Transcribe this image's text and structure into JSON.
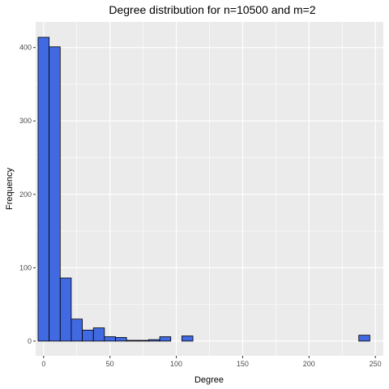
{
  "chart_data": {
    "type": "bar",
    "title": "Degree distribution for n=10500 and m=2",
    "xlabel": "Degree",
    "ylabel": "Frequency",
    "xlim": [
      -6,
      256
    ],
    "ylim": [
      -20,
      435
    ],
    "x_ticks": [
      0,
      50,
      100,
      150,
      200,
      250
    ],
    "y_ticks": [
      0,
      100,
      200,
      300,
      400
    ],
    "bin_width": 8.33,
    "bins": [
      {
        "start": -4.17,
        "end": 4.17,
        "value": 414
      },
      {
        "start": 4.17,
        "end": 12.5,
        "value": 401
      },
      {
        "start": 12.5,
        "end": 20.83,
        "value": 86
      },
      {
        "start": 20.83,
        "end": 29.17,
        "value": 30
      },
      {
        "start": 29.17,
        "end": 37.5,
        "value": 15
      },
      {
        "start": 37.5,
        "end": 45.83,
        "value": 18
      },
      {
        "start": 45.83,
        "end": 54.17,
        "value": 6
      },
      {
        "start": 54.17,
        "end": 62.5,
        "value": 5
      },
      {
        "start": 62.5,
        "end": 70.83,
        "value": 1
      },
      {
        "start": 70.83,
        "end": 79.17,
        "value": 1
      },
      {
        "start": 79.17,
        "end": 87.5,
        "value": 2
      },
      {
        "start": 87.5,
        "end": 95.83,
        "value": 6
      },
      {
        "start": 95.83,
        "end": 104.17,
        "value": 0
      },
      {
        "start": 104.17,
        "end": 112.5,
        "value": 7
      },
      {
        "start": 112.5,
        "end": 120.83,
        "value": 0
      },
      {
        "start": 120.83,
        "end": 129.17,
        "value": 0
      },
      {
        "start": 129.17,
        "end": 137.5,
        "value": 0
      },
      {
        "start": 137.5,
        "end": 145.83,
        "value": 0
      },
      {
        "start": 145.83,
        "end": 154.17,
        "value": 0
      },
      {
        "start": 154.17,
        "end": 162.5,
        "value": 0
      },
      {
        "start": 162.5,
        "end": 170.83,
        "value": 0
      },
      {
        "start": 170.83,
        "end": 179.17,
        "value": 0
      },
      {
        "start": 179.17,
        "end": 187.5,
        "value": 0
      },
      {
        "start": 187.5,
        "end": 195.83,
        "value": 0
      },
      {
        "start": 195.83,
        "end": 204.17,
        "value": 0
      },
      {
        "start": 204.17,
        "end": 212.5,
        "value": 0
      },
      {
        "start": 212.5,
        "end": 220.83,
        "value": 0
      },
      {
        "start": 220.83,
        "end": 229.17,
        "value": 0
      },
      {
        "start": 229.17,
        "end": 237.5,
        "value": 0
      },
      {
        "start": 237.5,
        "end": 245.83,
        "value": 8
      }
    ],
    "grid": true,
    "colors": {
      "bar_fill": "#4169E1",
      "bar_stroke": "#000000",
      "panel_background": "#EBEBEB",
      "grid_major": "#FFFFFF",
      "tick_label": "#4D4D4D"
    }
  }
}
